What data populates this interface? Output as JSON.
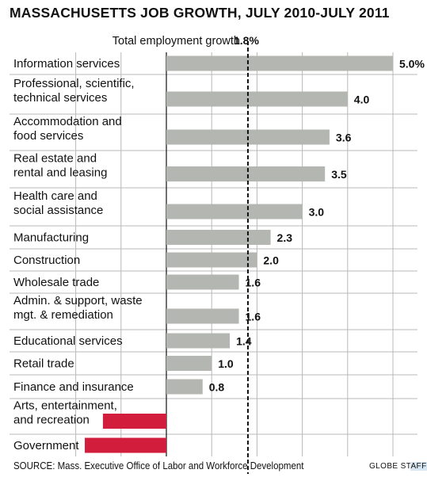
{
  "colors": {
    "bar_positive": "#b4b6b1",
    "bar_negative": "#d21e3c",
    "grid": "#b8b8b8",
    "text": "#111111"
  },
  "chart_data": {
    "type": "bar",
    "orientation": "horizontal",
    "title": "MASSACHUSETTS JOB GROWTH, JULY 2010-JULY 2011",
    "categories": [
      [
        "Information services"
      ],
      [
        "Professional, scientific,",
        "technical services"
      ],
      [
        "Accommodation and",
        "food services"
      ],
      [
        "Real estate and",
        "rental and leasing"
      ],
      [
        "Health care and",
        "social assistance"
      ],
      [
        "Manufacturing"
      ],
      [
        "Construction"
      ],
      [
        "Wholesale trade"
      ],
      [
        "Admin. & support, waste",
        "mgt. & remediation"
      ],
      [
        "Educational services"
      ],
      [
        "Retail trade"
      ],
      [
        "Finance and insurance"
      ],
      [
        "Arts, entertainment,",
        "and recreation"
      ],
      [
        "Government"
      ]
    ],
    "values": [
      5.0,
      4.0,
      3.6,
      3.5,
      3.0,
      2.3,
      2.0,
      1.6,
      1.6,
      1.4,
      1.0,
      0.8,
      -1.4,
      -1.8
    ],
    "value_labels": [
      "5.0%",
      "4.0",
      "3.6",
      "3.5",
      "3.0",
      "2.3",
      "2.0",
      "1.6",
      "1.6",
      "1.4",
      "1.0",
      "0.8",
      "",
      ""
    ],
    "reference": {
      "label": "Total employment growth",
      "value": 1.8,
      "value_label": "1.8%"
    },
    "xlim": [
      -2.0,
      5.0
    ],
    "grid": true
  },
  "footer": {
    "source": "SOURCE: Mass. Executive Office of Labor and Workforce Development",
    "credit_main": "GLOBE ST",
    "credit_highlight": "AFF"
  }
}
